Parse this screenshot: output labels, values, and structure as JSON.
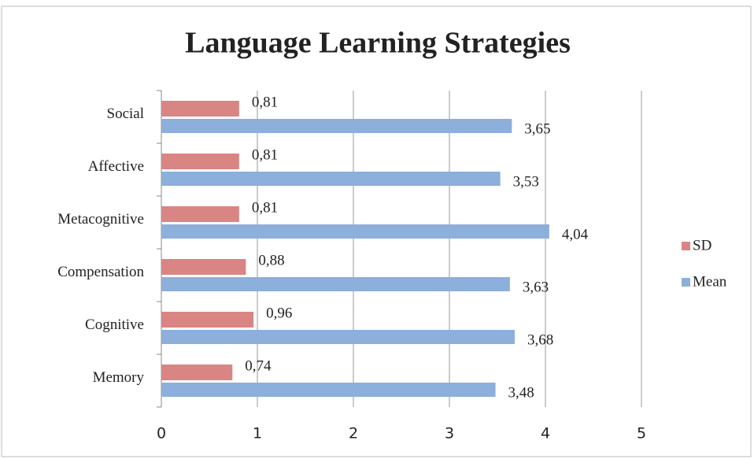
{
  "chart_data": {
    "type": "hbar",
    "title": "Language Learning Strategies",
    "categories": [
      "Social",
      "Affective",
      "Metacognitive",
      "Compensation",
      "Cognitive",
      "Memory"
    ],
    "series": [
      {
        "name": "SD",
        "color": "#d98584",
        "values": [
          0.81,
          0.81,
          0.81,
          0.88,
          0.96,
          0.74
        ],
        "value_labels": [
          "0,81",
          "0,81",
          "0,81",
          "0,88",
          "0,96",
          "0,74"
        ]
      },
      {
        "name": "Mean",
        "color": "#8cafdc",
        "values": [
          3.65,
          3.53,
          4.04,
          3.63,
          3.68,
          3.48
        ],
        "value_labels": [
          "3,65",
          "3,53",
          "4,04",
          "3,63",
          "3,68",
          "3,48"
        ]
      }
    ],
    "xlim": [
      0,
      5
    ],
    "xticks": [
      0,
      1,
      2,
      3,
      4,
      5
    ],
    "grid": true,
    "legend": "right"
  }
}
